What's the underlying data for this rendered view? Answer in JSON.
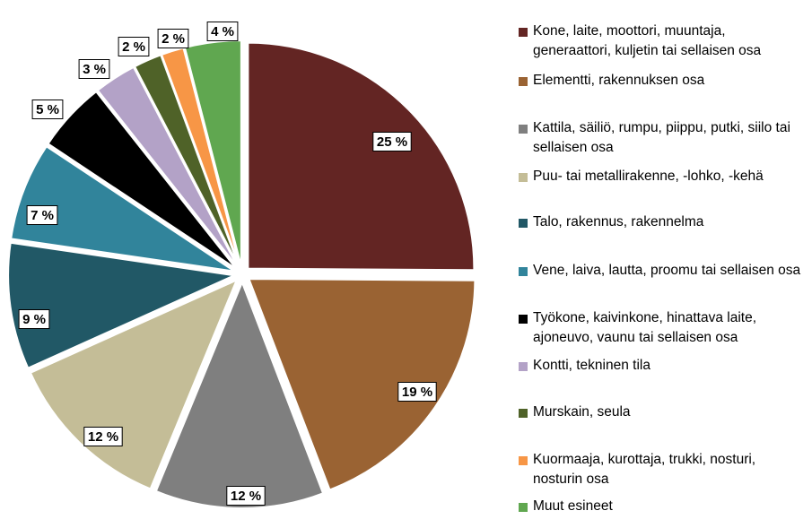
{
  "chart_data": {
    "type": "pie",
    "slices": [
      {
        "label": "Kone, laite, moottori, muuntaja, generaattori, kuljetin tai sellaisen osa",
        "value": 25,
        "display": "25 %",
        "color": "#632523"
      },
      {
        "label": "Elementti, rakennuksen osa",
        "value": 19,
        "display": "19 %",
        "color": "#9a6333"
      },
      {
        "label": "Kattila, säiliö, rumpu, piippu, putki, siilo tai sellaisen osa",
        "value": 12,
        "display": "12 %",
        "color": "#7f7f7f"
      },
      {
        "label": "Puu- tai metallirakenne, -lohko, -kehä",
        "value": 12,
        "display": "12 %",
        "color": "#c4bd97"
      },
      {
        "label": "Talo, rakennus, rakennelma",
        "value": 9,
        "display": "9 %",
        "color": "#215866"
      },
      {
        "label": "Vene, laiva, lautta, proomu tai sellaisen osa",
        "value": 7,
        "display": "7 %",
        "color": "#31849b"
      },
      {
        "label": "Työkone, kaivinkone, hinattava laite, ajoneuvo, vaunu tai sellaisen osa",
        "value": 5,
        "display": "5 %",
        "color": "#000000"
      },
      {
        "label": "Kontti, tekninen tila",
        "value": 3,
        "display": "3 %",
        "color": "#b3a2c7"
      },
      {
        "label": "Murskain, seula",
        "value": 2,
        "display": "2 %",
        "color": "#4f6228"
      },
      {
        "label": "Kuormaaja, kurottaja, trukki, nosturi, nosturin osa",
        "value": 1.6,
        "display": "2 %",
        "color": "#f79646"
      },
      {
        "label": "Muut esineet",
        "value": 4,
        "display": "4 %",
        "color": "#60a750"
      }
    ],
    "legend_position": "right"
  }
}
